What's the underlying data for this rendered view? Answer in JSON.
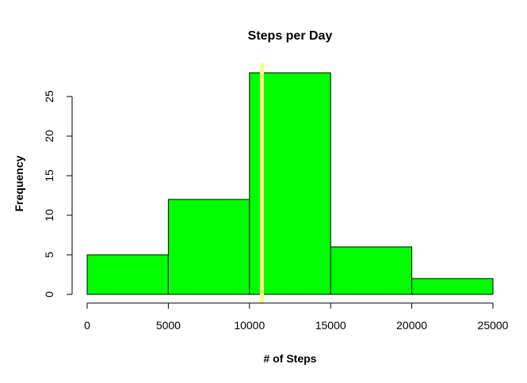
{
  "chart_data": {
    "type": "bar",
    "title": "Steps per Day",
    "xlabel": "# of Steps",
    "ylabel": "Frequency",
    "bins": [
      {
        "start": 0,
        "end": 5000,
        "count": 5
      },
      {
        "start": 5000,
        "end": 10000,
        "count": 12
      },
      {
        "start": 10000,
        "end": 15000,
        "count": 28
      },
      {
        "start": 15000,
        "end": 20000,
        "count": 6
      },
      {
        "start": 20000,
        "end": 25000,
        "count": 2
      }
    ],
    "xlim": [
      0,
      25000
    ],
    "ylim": [
      0,
      28
    ],
    "x_ticks": [
      0,
      5000,
      10000,
      15000,
      20000,
      25000
    ],
    "y_ticks": [
      0,
      5,
      10,
      15,
      20,
      25
    ],
    "reference_line": {
      "x": 10766,
      "color": "#ffff80"
    },
    "bar_color": "#00ff00",
    "grid": false,
    "legend": "none"
  }
}
